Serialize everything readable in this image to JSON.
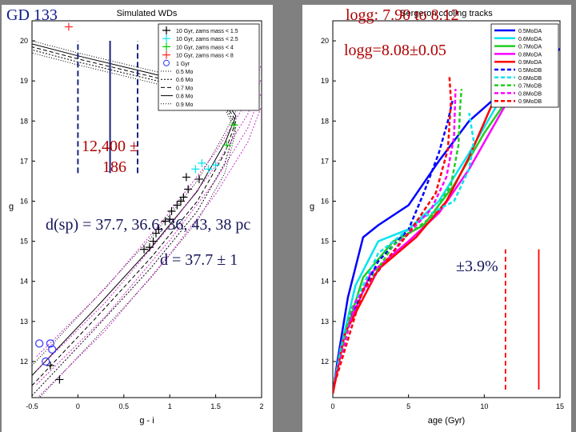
{
  "slide": {
    "star": "GD 133",
    "logg_range": "logg: 7.90 to 8.12",
    "logg_best": "logg=8.08±0.05",
    "teff": [
      "12,400 ±",
      "186"
    ],
    "dist_sp": "d(sp) = 37.7, 36.6, 36, 43, 38 pc",
    "dist_best": "d = 37.7 ± 1",
    "percent": "±3.9%",
    "colors": {
      "bg": "#808080",
      "blue_text": "#0b1a8a",
      "red_text": "#b00000"
    }
  },
  "chart_data": [
    {
      "type": "scatter",
      "title": "Simulated WDs",
      "xlabel": "g - i",
      "ylabel": "g",
      "xlim": [
        -0.5,
        2
      ],
      "ylim": [
        20.5,
        11.1
      ],
      "xticks": [
        "-0.5",
        "0",
        "0.5",
        "1",
        "1.5",
        "2"
      ],
      "yticks": [
        "12",
        "13",
        "14",
        "15",
        "16",
        "17",
        "18",
        "19",
        "20"
      ],
      "legend": [
        {
          "label": "10 Gyr, zams mass < 1.5",
          "color": "#000000",
          "marker": "plus"
        },
        {
          "label": "10 Gyr, zams mass < 2.5",
          "color": "#00e5ee",
          "marker": "plus"
        },
        {
          "label": "10 Gyr, zams mass < 4",
          "color": "#00cc00",
          "marker": "plus"
        },
        {
          "label": "10 Gyr, zams mass < 8",
          "color": "#ff2a2a",
          "marker": "plus"
        },
        {
          "label": "1 Gyr",
          "color": "#3333ff",
          "marker": "circle"
        },
        {
          "label": "0.5 Mo",
          "color": "#000000",
          "dash": "1,2"
        },
        {
          "label": "0.6 Mo",
          "color": "#000000",
          "dash": "2,2"
        },
        {
          "label": "0.7 Mo",
          "color": "#000000",
          "dash": "5,3"
        },
        {
          "label": "0.8 Mo",
          "color": "#000000",
          "dash": ""
        },
        {
          "label": "0.9 Mo",
          "color": "#000000",
          "dash": "1,2"
        }
      ],
      "points_black": [
        [
          -0.2,
          11.55
        ],
        [
          -0.3,
          11.9
        ],
        [
          0.72,
          14.8
        ],
        [
          0.78,
          14.85
        ],
        [
          0.82,
          15.0
        ],
        [
          0.85,
          15.2
        ],
        [
          0.88,
          15.3
        ],
        [
          0.95,
          15.5
        ],
        [
          1.0,
          15.55
        ],
        [
          1.02,
          15.75
        ],
        [
          1.08,
          15.9
        ],
        [
          1.12,
          16.0
        ],
        [
          1.15,
          16.1
        ],
        [
          1.2,
          16.3
        ],
        [
          1.18,
          16.6
        ],
        [
          1.32,
          16.55
        ]
      ],
      "points_cyan": [
        [
          1.28,
          16.8
        ],
        [
          1.35,
          16.95
        ],
        [
          1.42,
          16.8
        ],
        [
          1.5,
          16.9
        ]
      ],
      "points_green": [
        [
          1.62,
          17.4
        ],
        [
          1.7,
          17.9
        ]
      ],
      "points_red": [
        [
          1.7,
          18.65
        ],
        [
          -0.1,
          20.35
        ]
      ],
      "points_circle": [
        [
          -0.35,
          12.0
        ],
        [
          -0.28,
          12.3
        ],
        [
          -0.42,
          12.45
        ],
        [
          -0.3,
          12.45
        ]
      ],
      "vlines": [
        {
          "x": 0.0,
          "y0": 16.7,
          "y1": 20.0,
          "style": "dashed"
        },
        {
          "x": 0.35,
          "y0": 16.7,
          "y1": 20.0,
          "style": "solid"
        },
        {
          "x": 0.65,
          "y0": 16.7,
          "y1": 20.0,
          "style": "dashed"
        }
      ]
    },
    {
      "type": "line",
      "title": "Bergeron cooling tracks",
      "xlabel": "age (Gyr)",
      "ylabel": "g",
      "xlim": [
        0,
        15
      ],
      "ylim": [
        20.5,
        11.1
      ],
      "xticks": [
        "0",
        "5",
        "10",
        "15"
      ],
      "yticks": [
        "12",
        "13",
        "14",
        "15",
        "16",
        "17",
        "18",
        "19",
        "20"
      ],
      "series": [
        {
          "name": "0.5MoDA",
          "color": "#0000ff",
          "dash": "",
          "points": [
            [
              0,
              11.2
            ],
            [
              0.3,
              12.0
            ],
            [
              1,
              13.6
            ],
            [
              2,
              15.1
            ],
            [
              3,
              15.4
            ],
            [
              5,
              15.9
            ],
            [
              7,
              17.0
            ],
            [
              9,
              18.0
            ],
            [
              12,
              19.0
            ],
            [
              15,
              19.8
            ]
          ]
        },
        {
          "name": "0.6MoDA",
          "color": "#00e5ee",
          "dash": "",
          "points": [
            [
              0,
              11.2
            ],
            [
              0.5,
              12.3
            ],
            [
              1.5,
              13.9
            ],
            [
              3,
              15.0
            ],
            [
              5,
              15.3
            ],
            [
              7,
              16.0
            ],
            [
              9,
              17.2
            ],
            [
              11,
              18.5
            ],
            [
              13,
              19.3
            ],
            [
              14.5,
              19.9
            ]
          ]
        },
        {
          "name": "0.7MoDA",
          "color": "#22cc22",
          "dash": "",
          "points": [
            [
              0,
              11.2
            ],
            [
              0.6,
              12.4
            ],
            [
              2,
              14.1
            ],
            [
              4,
              15.0
            ],
            [
              6,
              15.4
            ],
            [
              8,
              16.4
            ],
            [
              10,
              17.7
            ],
            [
              12,
              18.8
            ],
            [
              14,
              19.6
            ],
            [
              14.5,
              20.0
            ]
          ]
        },
        {
          "name": "0.8MoDA",
          "color": "#ff00ff",
          "dash": "",
          "points": [
            [
              0,
              11.2
            ],
            [
              0.7,
              12.6
            ],
            [
              2.5,
              14.2
            ],
            [
              5,
              15.0
            ],
            [
              7,
              15.7
            ],
            [
              9,
              16.8
            ],
            [
              10.5,
              17.8
            ],
            [
              12,
              18.8
            ],
            [
              13.5,
              19.8
            ]
          ]
        },
        {
          "name": "0.9MoDA",
          "color": "#ff0000",
          "dash": "",
          "points": [
            [
              0,
              11.2
            ],
            [
              0.8,
              12.7
            ],
            [
              3,
              14.3
            ],
            [
              5.5,
              15.1
            ],
            [
              7.5,
              16.0
            ],
            [
              9,
              17.1
            ],
            [
              10.5,
              18.4
            ],
            [
              11.5,
              19.5
            ],
            [
              12.2,
              20.3
            ]
          ]
        },
        {
          "name": "0.5MoDB",
          "color": "#0000ff",
          "dash": "5,3",
          "points": [
            [
              0,
              11.3
            ],
            [
              1,
              13.0
            ],
            [
              3,
              14.5
            ],
            [
              5,
              15.3
            ],
            [
              6,
              16.2
            ],
            [
              7,
              17.2
            ],
            [
              7.6,
              18.0
            ],
            [
              7.9,
              18.5
            ]
          ]
        },
        {
          "name": "0.6MoDB",
          "color": "#00e5ee",
          "dash": "5,3",
          "points": [
            [
              0,
              11.3
            ],
            [
              1,
              13.1
            ],
            [
              3,
              14.7
            ],
            [
              6,
              15.6
            ],
            [
              8,
              16.0
            ],
            [
              9,
              16.8
            ],
            [
              9.3,
              17.5
            ],
            [
              9.0,
              18.2
            ]
          ]
        },
        {
          "name": "0.7MoDB",
          "color": "#22cc22",
          "dash": "5,3",
          "points": [
            [
              0,
              11.3
            ],
            [
              1.2,
              13.3
            ],
            [
              4,
              14.9
            ],
            [
              6.5,
              15.6
            ],
            [
              7.8,
              16.4
            ],
            [
              8.3,
              17.4
            ],
            [
              8.4,
              18.3
            ],
            [
              8.5,
              18.8
            ]
          ]
        },
        {
          "name": "0.8MoDB",
          "color": "#ff00ff",
          "dash": "5,3",
          "points": [
            [
              0,
              11.3
            ],
            [
              1.5,
              13.5
            ],
            [
              4.5,
              15.0
            ],
            [
              6.5,
              15.8
            ],
            [
              7.5,
              16.6
            ],
            [
              8,
              17.6
            ],
            [
              8.1,
              18.8
            ]
          ]
        },
        {
          "name": "0.9MoDB",
          "color": "#ff0000",
          "dash": "5,3",
          "points": [
            [
              0,
              11.3
            ],
            [
              2,
              13.8
            ],
            [
              5,
              15.2
            ],
            [
              6.8,
              16.2
            ],
            [
              7.6,
              17.3
            ],
            [
              7.8,
              18.5
            ],
            [
              7.7,
              19.1
            ]
          ]
        }
      ],
      "vlines": [
        {
          "x": 11.4,
          "y0": 11.3,
          "y1": 14.8,
          "style": "dashed",
          "color": "#ff0000"
        },
        {
          "x": 13.6,
          "y0": 11.3,
          "y1": 14.8,
          "style": "solid",
          "color": "#ff0000"
        }
      ]
    }
  ]
}
